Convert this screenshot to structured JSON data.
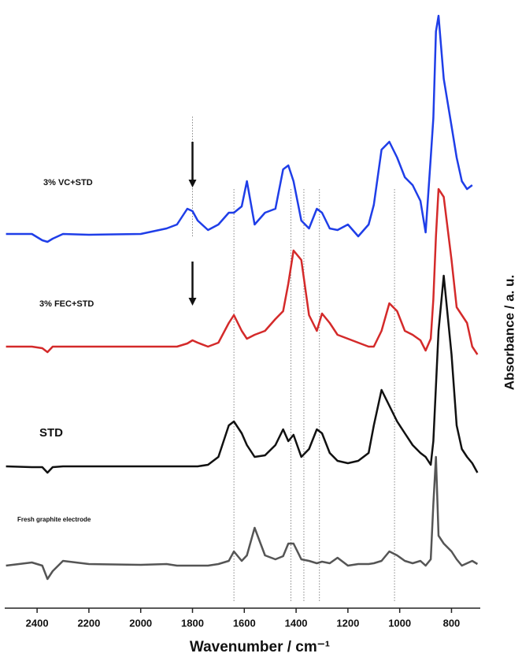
{
  "chart_data": {
    "type": "line",
    "x_label": "Wavenumber / cm⁻¹",
    "y_label": "Absorbance / a. u.",
    "xlim": [
      2525,
      695
    ],
    "ylim": [
      0,
      762
    ],
    "xticks": [
      2400,
      2200,
      2000,
      1800,
      1600,
      1400,
      1200,
      1000,
      800
    ],
    "reference_lines": [
      1800,
      1640,
      1420,
      1370,
      1310,
      1020
    ],
    "x": [
      2520,
      2420,
      2380,
      2360,
      2340,
      2300,
      2200,
      2000,
      1900,
      1860,
      1820,
      1800,
      1780,
      1740,
      1700,
      1660,
      1640,
      1610,
      1590,
      1560,
      1520,
      1480,
      1450,
      1430,
      1410,
      1380,
      1350,
      1320,
      1300,
      1270,
      1240,
      1200,
      1160,
      1120,
      1100,
      1070,
      1040,
      1010,
      980,
      950,
      920,
      900,
      880,
      870,
      860,
      850,
      830,
      800,
      780,
      760,
      740,
      720,
      700
    ],
    "series": [
      {
        "name": "3% VC+STD",
        "color": "#1f3ee8",
        "values": [
          475,
          475,
          467,
          465,
          469,
          475,
          474,
          475,
          482,
          487,
          507,
          504,
          492,
          480,
          487,
          502,
          502,
          510,
          542,
          487,
          502,
          507,
          557,
          562,
          542,
          492,
          482,
          507,
          502,
          482,
          480,
          487,
          472,
          487,
          512,
          582,
          592,
          572,
          547,
          537,
          517,
          477,
          572,
          622,
          732,
          752,
          672,
          612,
          572,
          542,
          532,
          537,
          null
        ]
      },
      {
        "name": "3% FEC+STD",
        "color": "#d42a2a",
        "values": [
          332,
          332,
          330,
          325,
          332,
          332,
          332,
          332,
          332,
          332,
          336,
          340,
          337,
          332,
          337,
          362,
          372,
          352,
          342,
          347,
          352,
          367,
          377,
          412,
          454,
          442,
          372,
          352,
          374,
          362,
          347,
          342,
          337,
          332,
          332,
          352,
          387,
          377,
          352,
          347,
          340,
          327,
          342,
          392,
          472,
          532,
          522,
          442,
          382,
          372,
          362,
          332,
          322
        ]
      },
      {
        "name": "STD",
        "color": "#111111",
        "values": [
          180,
          179,
          179,
          172,
          179,
          180,
          180,
          180,
          180,
          180,
          180,
          180,
          180,
          182,
          192,
          232,
          237,
          222,
          207,
          192,
          194,
          207,
          227,
          212,
          220,
          192,
          202,
          227,
          222,
          197,
          187,
          184,
          187,
          197,
          232,
          277,
          257,
          237,
          222,
          207,
          197,
          192,
          182,
          212,
          282,
          352,
          422,
          322,
          232,
          202,
          192,
          184,
          172
        ]
      },
      {
        "name": "Fresh graphite electrode",
        "color": "#555555",
        "values": [
          54,
          58,
          54,
          37,
          47,
          60,
          56,
          55,
          56,
          54,
          54,
          54,
          54,
          54,
          56,
          60,
          72,
          60,
          67,
          102,
          67,
          62,
          66,
          82,
          82,
          62,
          60,
          57,
          59,
          57,
          64,
          54,
          56,
          56,
          57,
          60,
          72,
          67,
          60,
          57,
          60,
          54,
          62,
          132,
          192,
          92,
          82,
          72,
          62,
          54,
          57,
          60,
          56
        ]
      }
    ]
  }
}
